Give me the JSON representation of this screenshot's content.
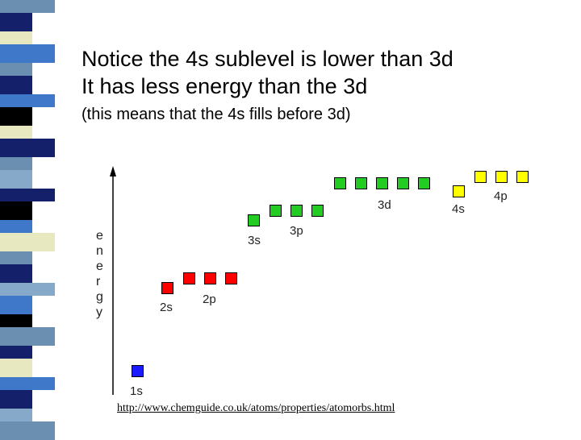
{
  "slide": {
    "title_line1": "Notice the 4s sublevel is lower than 3d",
    "title_line2": "It has less energy than the 3d",
    "subtitle": "(this means that the 4s fills before 3d)",
    "source_link": "http://www.chemguide.co.uk/atoms/properties/atomorbs.html"
  },
  "diagram": {
    "axis_label": [
      "e",
      "n",
      "e",
      "r",
      "g",
      "y"
    ],
    "sublevels": [
      {
        "label": "1s",
        "orbitals": 1,
        "color": "#1a1aff"
      },
      {
        "label": "2s",
        "orbitals": 1,
        "color": "#ff0000"
      },
      {
        "label": "2p",
        "orbitals": 3,
        "color": "#ff0000"
      },
      {
        "label": "3s",
        "orbitals": 1,
        "color": "#22cc22"
      },
      {
        "label": "3p",
        "orbitals": 3,
        "color": "#22cc22"
      },
      {
        "label": "3d",
        "orbitals": 5,
        "color": "#22cc22"
      },
      {
        "label": "4s",
        "orbitals": 1,
        "color": "#ffff00"
      },
      {
        "label": "4p",
        "orbitals": 3,
        "color": "#ffff00"
      }
    ]
  },
  "theme": {
    "stripe_colors": [
      "#6a8fb0",
      "#15206a",
      "#3f78c9",
      "#e8e8c0",
      "#000000",
      "#87a9c9"
    ]
  }
}
